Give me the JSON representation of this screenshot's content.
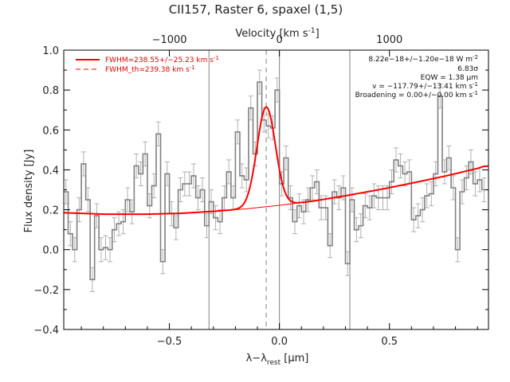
{
  "chart_data": {
    "type": "line",
    "title": "CII157, Raster 6, spaxel (1,5)",
    "xlabel": "λ−λ",
    "xlabel_sub": "rest",
    "xlabel_unit": " [μm]",
    "ylabel": "Flux density [Jy]",
    "top_xlabel": "Velocity [km s",
    "top_xlabel_sup": "-1",
    "top_xlabel_end": "]",
    "xlim": [
      -0.98,
      0.95
    ],
    "ylim": [
      -0.4,
      1.0
    ],
    "xticks": [
      {
        "value": -0.5,
        "label": "−0.5"
      },
      {
        "value": 0.0,
        "label": "0.0"
      },
      {
        "value": 0.5,
        "label": "0.5"
      }
    ],
    "yticks": [
      {
        "value": -0.4,
        "label": "−0.4"
      },
      {
        "value": -0.2,
        "label": "−0.2"
      },
      {
        "value": 0.0,
        "label": "0.0"
      },
      {
        "value": 0.2,
        "label": "0.2"
      },
      {
        "value": 0.4,
        "label": "0.4"
      },
      {
        "value": 0.6,
        "label": "0.6"
      },
      {
        "value": 0.8,
        "label": "0.8"
      },
      {
        "value": 1.0,
        "label": "1.0"
      }
    ],
    "top_ticks": [
      {
        "value": -0.5,
        "label": "−1000"
      },
      {
        "value": 0.0,
        "label": "0"
      },
      {
        "value": 0.5,
        "label": "1000"
      }
    ],
    "vlines": [
      -0.32,
      0.0,
      0.32
    ],
    "line_center": -0.06,
    "spectrum": {
      "x": [
        -0.97,
        -0.95,
        -0.93,
        -0.91,
        -0.89,
        -0.87,
        -0.85,
        -0.83,
        -0.81,
        -0.79,
        -0.77,
        -0.75,
        -0.73,
        -0.71,
        -0.69,
        -0.67,
        -0.65,
        -0.63,
        -0.61,
        -0.59,
        -0.57,
        -0.55,
        -0.53,
        -0.51,
        -0.49,
        -0.47,
        -0.45,
        -0.43,
        -0.41,
        -0.39,
        -0.37,
        -0.35,
        -0.33,
        -0.31,
        -0.29,
        -0.27,
        -0.25,
        -0.23,
        -0.21,
        -0.19,
        -0.17,
        -0.15,
        -0.13,
        -0.11,
        -0.09,
        -0.07,
        -0.05,
        -0.03,
        -0.01,
        0.01,
        0.03,
        0.05,
        0.07,
        0.09,
        0.11,
        0.13,
        0.15,
        0.17,
        0.19,
        0.21,
        0.23,
        0.25,
        0.27,
        0.29,
        0.31,
        0.33,
        0.35,
        0.37,
        0.39,
        0.41,
        0.43,
        0.45,
        0.47,
        0.49,
        0.51,
        0.53,
        0.55,
        0.57,
        0.59,
        0.61,
        0.63,
        0.65,
        0.67,
        0.69,
        0.71,
        0.73,
        0.75,
        0.77,
        0.79,
        0.81,
        0.83,
        0.85,
        0.87,
        0.89,
        0.91,
        0.93
      ],
      "y": [
        0.29,
        0.08,
        0.0,
        0.2,
        0.43,
        0.25,
        -0.15,
        0.17,
        0.0,
        0.01,
        0.0,
        0.1,
        0.13,
        0.14,
        0.25,
        0.19,
        0.42,
        0.38,
        0.48,
        0.22,
        0.32,
        0.58,
        -0.06,
        0.38,
        0.18,
        0.11,
        0.3,
        0.33,
        0.33,
        0.37,
        0.26,
        0.3,
        0.12,
        0.24,
        0.16,
        0.14,
        0.26,
        0.39,
        0.26,
        0.59,
        0.37,
        0.35,
        0.71,
        0.48,
        0.84,
        0.65,
        0.62,
        0.61,
        0.8,
        0.33,
        0.46,
        0.26,
        0.14,
        0.22,
        0.19,
        0.25,
        0.31,
        0.34,
        0.21,
        0.21,
        0.02,
        0.29,
        0.26,
        0.31,
        -0.07,
        0.25,
        0.1,
        0.12,
        0.22,
        0.21,
        0.27,
        0.26,
        0.26,
        0.26,
        0.34,
        0.45,
        0.42,
        0.38,
        0.39,
        0.15,
        0.17,
        0.2,
        0.27,
        0.28,
        0.38,
        0.77,
        0.39,
        0.46,
        0.31,
        0.0,
        0.29,
        0.36,
        0.44,
        0.33,
        0.35,
        0.3
      ],
      "err": [
        0.06,
        0.06,
        0.06,
        0.06,
        0.06,
        0.06,
        0.06,
        0.06,
        0.06,
        0.06,
        0.06,
        0.06,
        0.06,
        0.06,
        0.06,
        0.06,
        0.06,
        0.06,
        0.06,
        0.06,
        0.06,
        0.06,
        0.06,
        0.06,
        0.06,
        0.06,
        0.06,
        0.06,
        0.06,
        0.06,
        0.06,
        0.06,
        0.06,
        0.06,
        0.06,
        0.06,
        0.06,
        0.06,
        0.06,
        0.06,
        0.06,
        0.06,
        0.06,
        0.06,
        0.06,
        0.06,
        0.06,
        0.06,
        0.06,
        0.06,
        0.06,
        0.06,
        0.06,
        0.06,
        0.06,
        0.06,
        0.06,
        0.06,
        0.06,
        0.06,
        0.06,
        0.06,
        0.06,
        0.06,
        0.06,
        0.06,
        0.06,
        0.06,
        0.06,
        0.06,
        0.06,
        0.06,
        0.06,
        0.06,
        0.06,
        0.06,
        0.06,
        0.06,
        0.06,
        0.06,
        0.06,
        0.06,
        0.06,
        0.06,
        0.06,
        0.06,
        0.06,
        0.06,
        0.06,
        0.06,
        0.06,
        0.06,
        0.06,
        0.06,
        0.06,
        0.06
      ]
    },
    "continuum": {
      "x": [
        -0.98,
        -0.8,
        -0.6,
        -0.45,
        -0.3,
        -0.15,
        0.0,
        0.15,
        0.3,
        0.45,
        0.6,
        0.75,
        0.9,
        0.93
      ],
      "y": [
        0.185,
        0.178,
        0.178,
        0.182,
        0.192,
        0.205,
        0.222,
        0.243,
        0.27,
        0.3,
        0.333,
        0.368,
        0.407,
        0.418
      ]
    },
    "gaussian_fit": {
      "center": -0.06,
      "amplitude": 0.5,
      "sigma": 0.042
    },
    "legend": [
      {
        "label": "FWHM=238.55+/−25.23 km s",
        "label_sup": "-1",
        "style": "solid",
        "color": "#ff0000"
      },
      {
        "label": "FWHM_th=239.38 km s",
        "label_sup": "-1",
        "style": "dashed",
        "color": "#ff0000"
      }
    ],
    "annotations": {
      "flux": "8.22e−18+/−1.20e−18 W m",
      "flux_sup": "-2",
      "sigma": "6.83σ",
      "eqw": "EQW = 1.38 μm",
      "vel": "v = −117.79+/−13.41 km s",
      "vel_sup": "-1",
      "broad": "Broadening = 0.00+/−0.00 km s",
      "broad_sup": "-1"
    },
    "colors": {
      "spectrum": "#808080",
      "errorbar": "#b0b0b0",
      "fit": "#ff0000",
      "vline": "#808080",
      "axis": "#000000"
    }
  }
}
